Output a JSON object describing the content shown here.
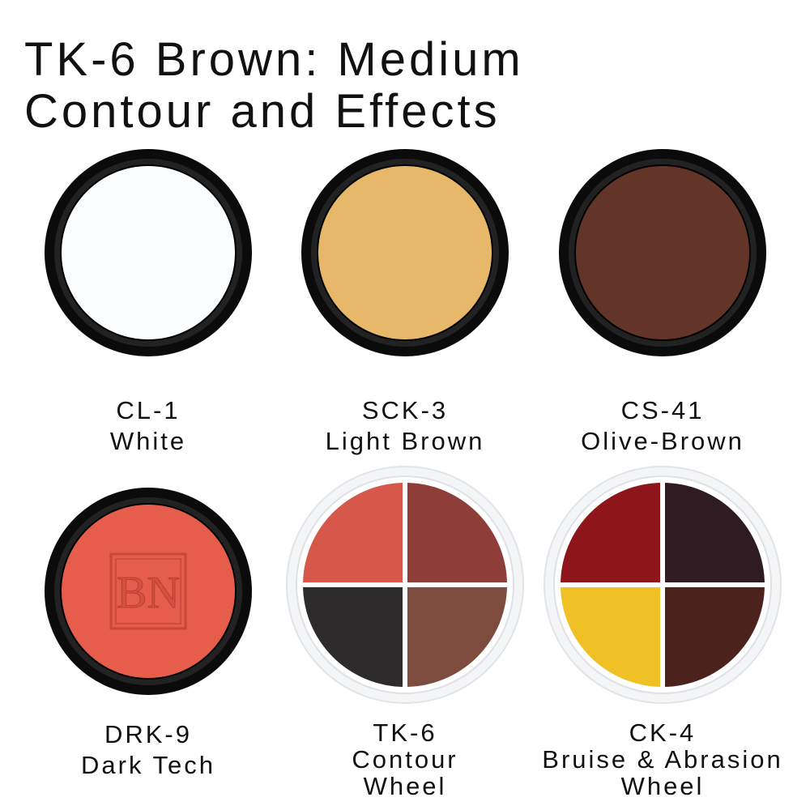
{
  "title": {
    "line1": "TK-6 Brown: Medium",
    "line2": "Contour and Effects"
  },
  "products": [
    {
      "code": "CL-1",
      "name": [
        "White"
      ],
      "type": "pot",
      "color": "#fbfcfd"
    },
    {
      "code": "SCK-3",
      "name": [
        "Light Brown"
      ],
      "type": "pot",
      "color": "#e8b86a"
    },
    {
      "code": "CS-41",
      "name": [
        "Olive-Brown"
      ],
      "type": "pot",
      "color": "#633529"
    },
    {
      "code": "DRK-9",
      "name": [
        "Dark Tech"
      ],
      "type": "pot",
      "color": "#e65d4c",
      "logo": "BN"
    },
    {
      "code": "TK-6",
      "name": [
        "Contour",
        "Wheel"
      ],
      "type": "wheel",
      "colors": [
        "#d5584a",
        "#8f3d38",
        "#2d2b2c",
        "#7d4c3e"
      ]
    },
    {
      "code": "CK-4",
      "name": [
        "Bruise & Abrasion",
        "Wheel"
      ],
      "type": "wheel",
      "colors": [
        "#8e1519",
        "#2e1c22",
        "#f0c125",
        "#4b221c"
      ]
    }
  ]
}
